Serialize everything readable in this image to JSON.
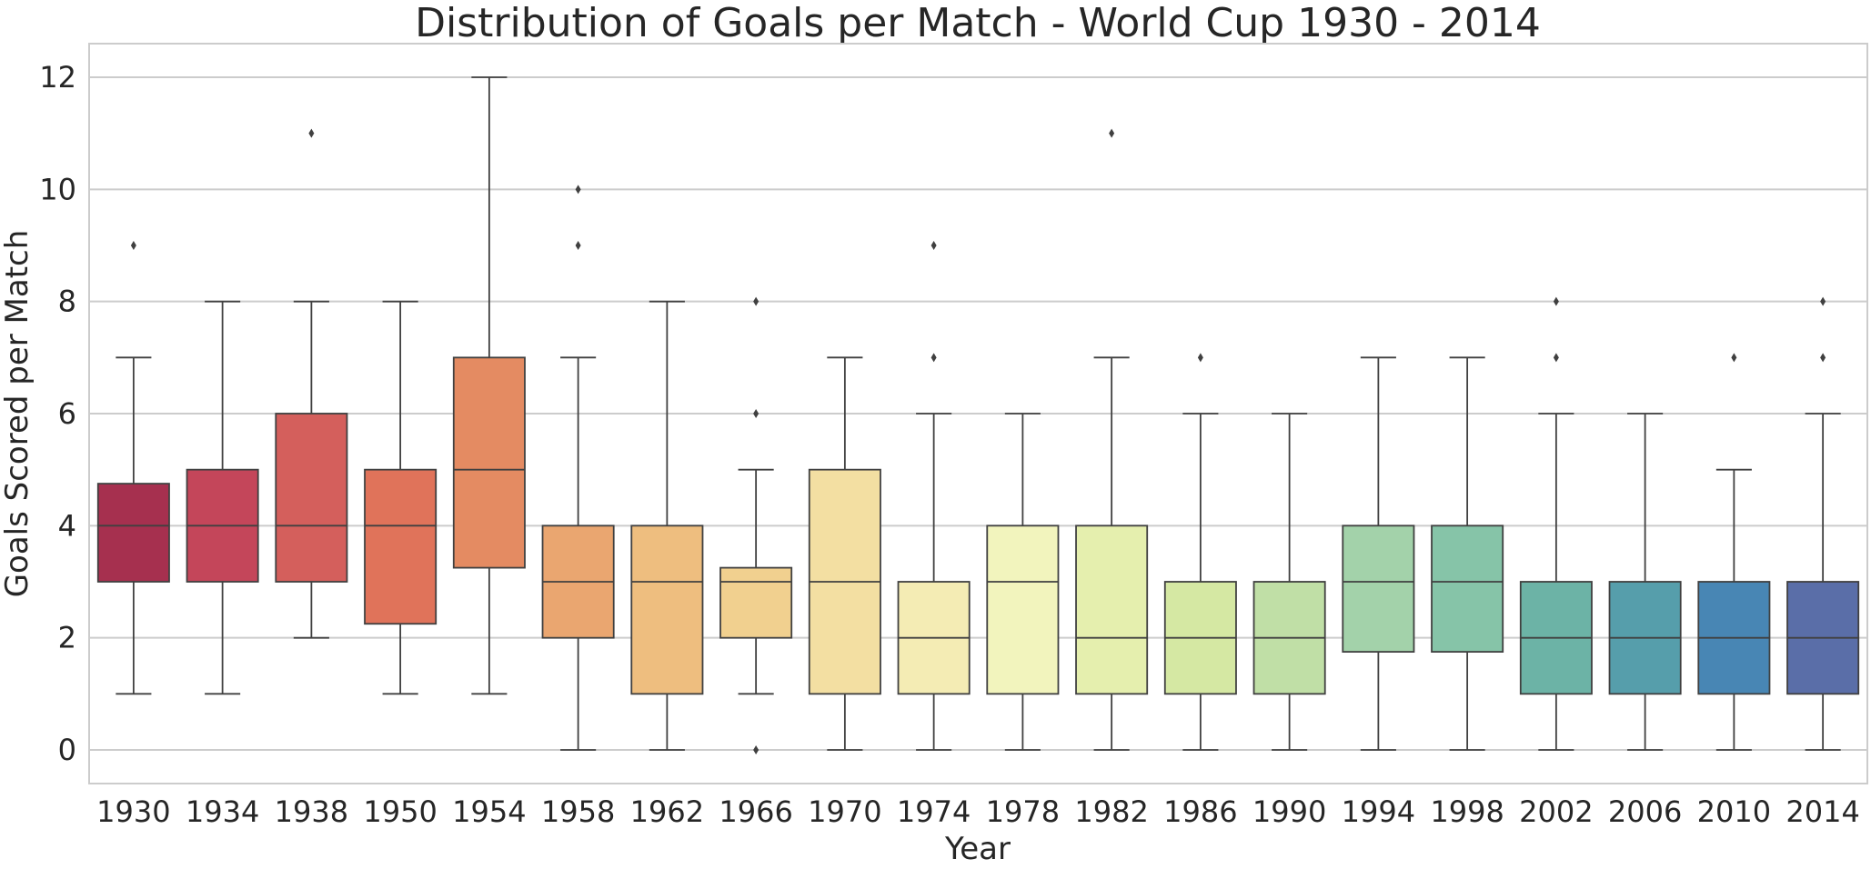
{
  "chart_data": {
    "type": "box",
    "title": "Distribution of Goals per Match - World Cup 1930 - 2014",
    "xlabel": "Year",
    "ylabel": "Goals Scored per Match",
    "ylim": [
      -0.6,
      12.6
    ],
    "yticks": [
      0,
      2,
      4,
      6,
      8,
      10,
      12
    ],
    "grid": "horizontal",
    "categories": [
      "1930",
      "1934",
      "1938",
      "1950",
      "1954",
      "1958",
      "1962",
      "1966",
      "1970",
      "1974",
      "1978",
      "1982",
      "1986",
      "1990",
      "1994",
      "1998",
      "2002",
      "2006",
      "2010",
      "2014"
    ],
    "boxes": [
      {
        "year": "1930",
        "whisker_low": 1,
        "q1": 3,
        "median": 4,
        "q3": 4.75,
        "whisker_high": 7,
        "outliers": [
          9
        ],
        "color": "#a6304f"
      },
      {
        "year": "1934",
        "whisker_low": 1,
        "q1": 3,
        "median": 4,
        "q3": 5,
        "whisker_high": 8,
        "outliers": [],
        "color": "#c4465a"
      },
      {
        "year": "1938",
        "whisker_low": 2,
        "q1": 3,
        "median": 4,
        "q3": 6,
        "whisker_high": 8,
        "outliers": [
          11
        ],
        "color": "#d45f5c"
      },
      {
        "year": "1950",
        "whisker_low": 1,
        "q1": 2.25,
        "median": 4,
        "q3": 5,
        "whisker_high": 8,
        "outliers": [],
        "color": "#e0735a"
      },
      {
        "year": "1954",
        "whisker_low": 1,
        "q1": 3.25,
        "median": 5,
        "q3": 7,
        "whisker_high": 12,
        "outliers": [],
        "color": "#e48b62"
      },
      {
        "year": "1958",
        "whisker_low": 0,
        "q1": 2,
        "median": 3,
        "q3": 4,
        "whisker_high": 7,
        "outliers": [
          9,
          10
        ],
        "color": "#eaa670"
      },
      {
        "year": "1962",
        "whisker_low": 0,
        "q1": 1,
        "median": 3,
        "q3": 4,
        "whisker_high": 8,
        "outliers": [],
        "color": "#eebe7f"
      },
      {
        "year": "1966",
        "whisker_low": 1,
        "q1": 2,
        "median": 3,
        "q3": 3.25,
        "whisker_high": 5,
        "outliers": [
          0,
          6,
          8
        ],
        "color": "#f1d08f"
      },
      {
        "year": "1970",
        "whisker_low": 0,
        "q1": 1,
        "median": 3,
        "q3": 5,
        "whisker_high": 7,
        "outliers": [],
        "color": "#f3dfa2"
      },
      {
        "year": "1974",
        "whisker_low": 0,
        "q1": 1,
        "median": 2,
        "q3": 3,
        "whisker_high": 6,
        "outliers": [
          7,
          9
        ],
        "color": "#f4ecb4"
      },
      {
        "year": "1978",
        "whisker_low": 0,
        "q1": 1,
        "median": 3,
        "q3": 4,
        "whisker_high": 6,
        "outliers": [],
        "color": "#f2f4bd"
      },
      {
        "year": "1982",
        "whisker_low": 0,
        "q1": 1,
        "median": 2,
        "q3": 4,
        "whisker_high": 7,
        "outliers": [
          11
        ],
        "color": "#e5efae"
      },
      {
        "year": "1986",
        "whisker_low": 0,
        "q1": 1,
        "median": 2,
        "q3": 3,
        "whisker_high": 6,
        "outliers": [
          7
        ],
        "color": "#d5e8a3"
      },
      {
        "year": "1990",
        "whisker_low": 0,
        "q1": 1,
        "median": 2,
        "q3": 3,
        "whisker_high": 6,
        "outliers": [],
        "color": "#c0dfa6"
      },
      {
        "year": "1994",
        "whisker_low": 0,
        "q1": 1.75,
        "median": 3,
        "q3": 4,
        "whisker_high": 7,
        "outliers": [],
        "color": "#a3d2aa"
      },
      {
        "year": "1998",
        "whisker_low": 0,
        "q1": 1.75,
        "median": 3,
        "q3": 4,
        "whisker_high": 7,
        "outliers": [],
        "color": "#86c4a8"
      },
      {
        "year": "2002",
        "whisker_low": 0,
        "q1": 1,
        "median": 2,
        "q3": 3,
        "whisker_high": 6,
        "outliers": [
          7,
          8
        ],
        "color": "#6cb3a6"
      },
      {
        "year": "2006",
        "whisker_low": 0,
        "q1": 1,
        "median": 2,
        "q3": 3,
        "whisker_high": 6,
        "outliers": [],
        "color": "#569eab"
      },
      {
        "year": "2010",
        "whisker_low": 0,
        "q1": 1,
        "median": 2,
        "q3": 3,
        "whisker_high": 5,
        "outliers": [
          7
        ],
        "color": "#4886b4"
      },
      {
        "year": "2014",
        "whisker_low": 0,
        "q1": 1,
        "median": 2,
        "q3": 3,
        "whisker_high": 6,
        "outliers": [
          7,
          8
        ],
        "color": "#5a6ea8"
      }
    ],
    "styles": {
      "background": "#ffffff",
      "grid_color": "#cccccc",
      "spine_color": "#cccccc",
      "line_color": "#404040",
      "text_color": "#262626"
    }
  }
}
